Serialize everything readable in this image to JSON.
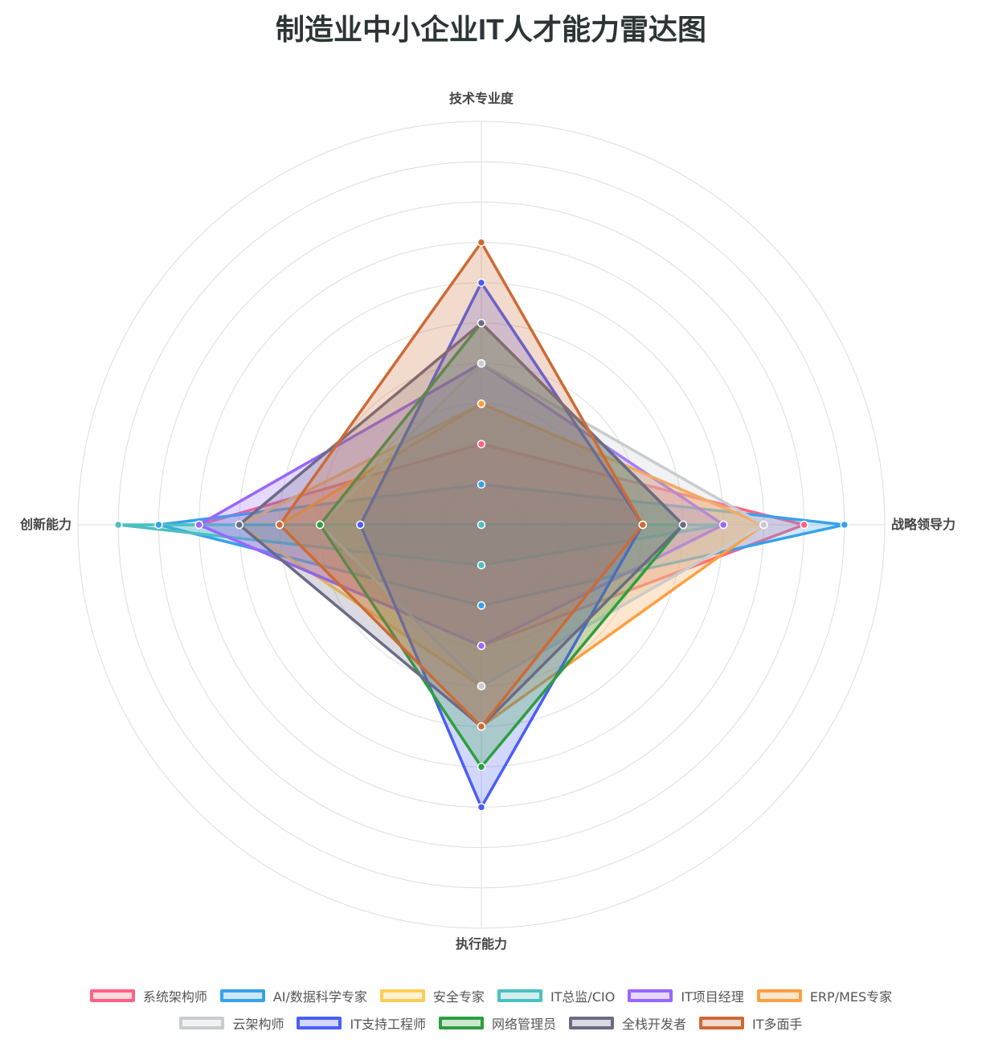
{
  "chart_data": {
    "type": "radar",
    "title": "制造业中小企业IT人才能力雷达图",
    "axes": [
      "技术专业度",
      "战略领导力",
      "执行能力",
      "创新能力"
    ],
    "r_range": [
      0,
      10
    ],
    "grid": true,
    "legend_position": "bottom",
    "series": [
      {
        "name": "系统架构师",
        "values": [
          2,
          8,
          3,
          7
        ],
        "color": "#ff6384"
      },
      {
        "name": "AI/数据科学专家",
        "values": [
          1,
          9,
          2,
          8
        ],
        "color": "#36a2eb"
      },
      {
        "name": "安全专家",
        "values": [
          3,
          7,
          4,
          6
        ],
        "color": "#ffcd56"
      },
      {
        "name": "IT总监/CIO",
        "values": [
          0,
          6,
          1,
          9
        ],
        "color": "#4bc0c0"
      },
      {
        "name": "IT项目经理",
        "values": [
          4,
          6,
          3,
          7
        ],
        "color": "#9966ff"
      },
      {
        "name": "ERP/MES专家",
        "values": [
          3,
          7,
          5,
          5
        ],
        "color": "#ff9f40"
      },
      {
        "name": "云架构师",
        "values": [
          4,
          7,
          4,
          4
        ],
        "color": "#c9cbcf"
      },
      {
        "name": "IT支持工程师",
        "values": [
          6,
          4,
          7,
          3
        ],
        "color": "#4a5ef7"
      },
      {
        "name": "网络管理员",
        "values": [
          5,
          5,
          6,
          4
        ],
        "color": "#2e9e3e"
      },
      {
        "name": "全栈开发者",
        "values": [
          5,
          5,
          5,
          6
        ],
        "color": "#6b6b85"
      },
      {
        "name": "IT多面手",
        "values": [
          7,
          4,
          5,
          5
        ],
        "color": "#cd6a35"
      }
    ]
  },
  "legend": {
    "rows": [
      [
        0,
        1,
        2,
        3,
        4,
        5
      ],
      [
        6,
        7,
        8,
        9,
        10
      ]
    ]
  },
  "colors": {
    "title": "#2d3436",
    "axis_label": "#444444",
    "grid": "#dddddd",
    "legend_text": "#555555"
  }
}
